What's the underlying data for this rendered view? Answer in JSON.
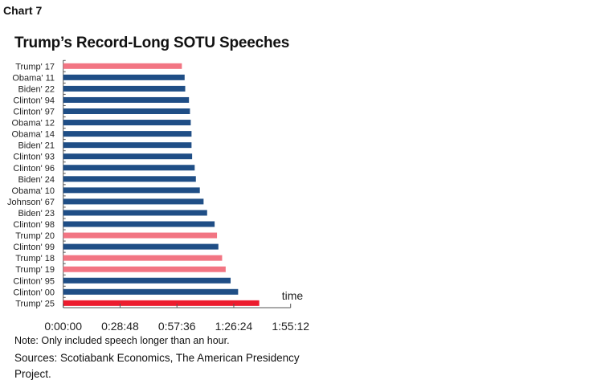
{
  "header": {
    "chart_label": "Chart 7"
  },
  "chart_data": {
    "type": "bar",
    "orientation": "horizontal",
    "title": "Trump’s Record-Long SOTU Speeches",
    "xlabel": "time",
    "ylabel": "",
    "xlim": [
      "0:00:00",
      "1:55:12"
    ],
    "x_ticks": [
      "0:00:00",
      "0:28:48",
      "0:57:36",
      "1:26:24",
      "1:55:12"
    ],
    "grid": false,
    "categories": [
      "Trump' 17",
      "Obama' 11",
      "Biden' 22",
      "Clinton' 94",
      "Clinton' 97",
      "Obama' 12",
      "Obama' 14",
      "Biden' 21",
      "Clinton' 93",
      "Clinton' 96",
      "Biden' 24",
      "Obama' 10",
      "Johnson' 67",
      "Biden' 23",
      "Clinton' 98",
      "Trump' 20",
      "Clinton' 99",
      "Trump' 18",
      "Trump' 19",
      "Clinton' 95",
      "Clinton' 00",
      "Trump' 25"
    ],
    "values": [
      "1:00:06",
      "1:01:30",
      "1:01:48",
      "1:03:42",
      "1:04:12",
      "1:04:36",
      "1:05:00",
      "1:05:00",
      "1:05:18",
      "1:06:36",
      "1:07:12",
      "1:09:12",
      "1:11:06",
      "1:12:54",
      "1:16:42",
      "1:17:54",
      "1:18:36",
      "1:20:30",
      "1:22:18",
      "1:24:48",
      "1:28:36",
      "1:39:18"
    ],
    "bar_colors": {
      "other": "#1f4e86",
      "trump_past": "#f27583",
      "trump_2025": "#ec1c2e"
    },
    "bar_color_keys": [
      "trump_past",
      "other",
      "other",
      "other",
      "other",
      "other",
      "other",
      "other",
      "other",
      "other",
      "other",
      "other",
      "other",
      "other",
      "other",
      "trump_past",
      "other",
      "trump_past",
      "trump_past",
      "other",
      "other",
      "trump_2025"
    ]
  },
  "footer": {
    "note": "Note: Only included speech longer than an hour.",
    "sources": "Sources: Scotiabank Economics, The American Presidency Project."
  }
}
